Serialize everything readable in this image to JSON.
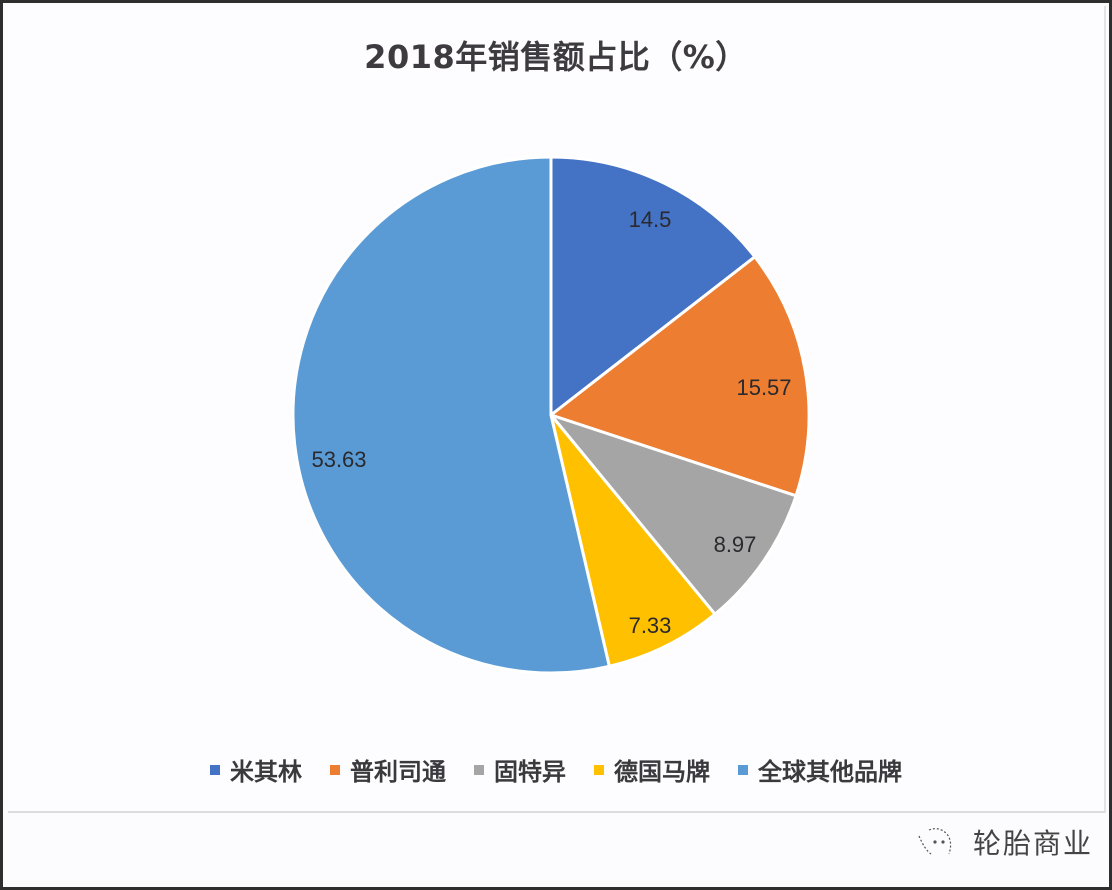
{
  "chart_data": {
    "type": "pie",
    "title": "2018年销售额占比（%）",
    "categories": [
      "米其林",
      "普利司通",
      "固特异",
      "德国马牌",
      "全球其他品牌"
    ],
    "values": [
      14.5,
      15.57,
      8.97,
      7.33,
      53.63
    ],
    "colors": [
      "#4472c4",
      "#ed7d31",
      "#a5a5a5",
      "#ffc000",
      "#5b9bd5"
    ],
    "data_labels": [
      "14.5",
      "15.57",
      "8.97",
      "7.33",
      "53.63"
    ],
    "start_angle": "12 o'clock",
    "direction": "clockwise",
    "legend_position": "bottom"
  },
  "title": "2018年销售额占比（%）",
  "legend": [
    {
      "label": "米其林",
      "color": "#4472c4"
    },
    {
      "label": "普利司通",
      "color": "#ed7d31"
    },
    {
      "label": "固特异",
      "color": "#a5a5a5"
    },
    {
      "label": "德国马牌",
      "color": "#ffc000"
    },
    {
      "label": "全球其他品牌",
      "color": "#5b9bd5"
    }
  ],
  "watermark": {
    "text": "轮胎商业"
  }
}
